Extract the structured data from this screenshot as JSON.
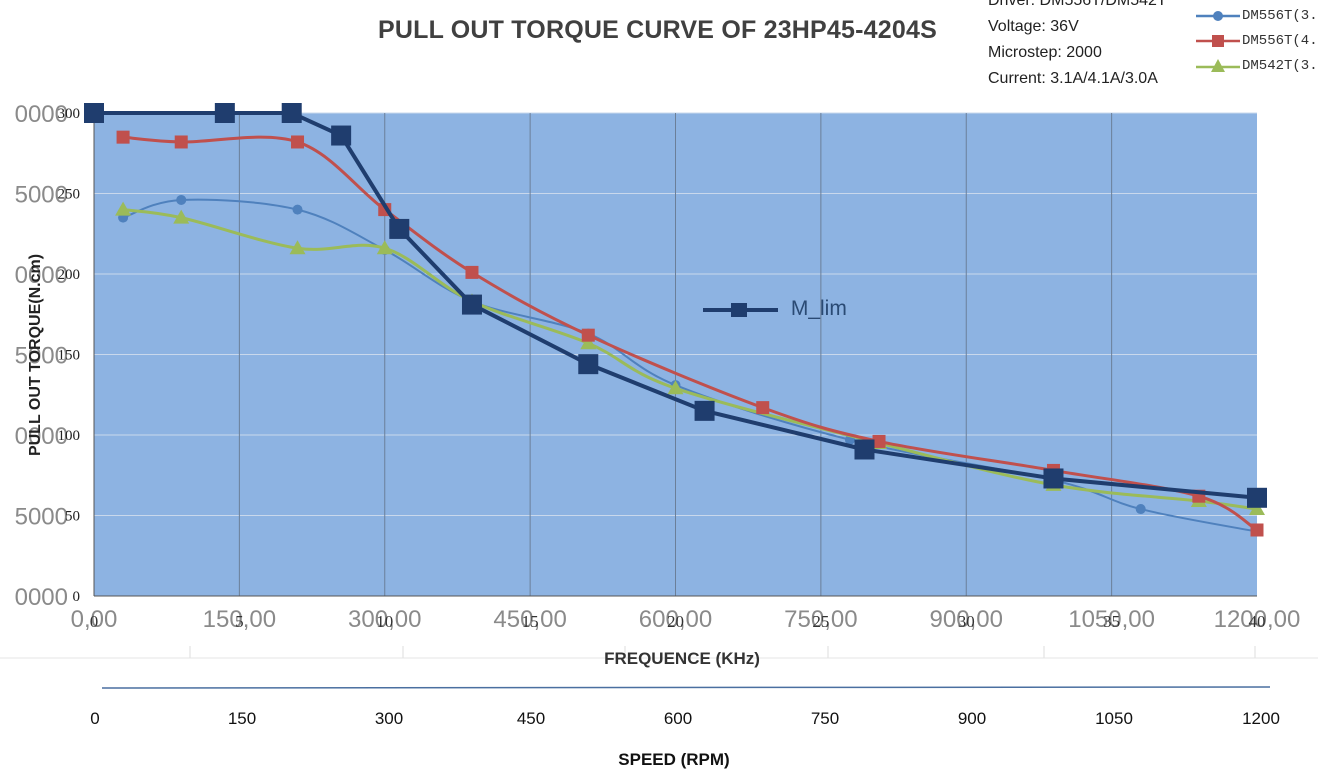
{
  "chart_data": {
    "type": "line",
    "title": "PULL OUT TORQUE CURVE OF 23HP45-4204S",
    "info_lines": [
      "Driver: DM556T/DM542T",
      "Voltage: 36V",
      "Microstep: 2000",
      "Current: 3.1A/4.1A/3.0A"
    ],
    "xlabel": "FREQUENCE (KHz)",
    "ylabel": "PULL OUT TORQUE(N.cm)",
    "secondary_xlabel": "SPEED (RPM)",
    "xlim": [
      0,
      40
    ],
    "ylim": [
      0,
      300
    ],
    "x_ticks": [
      "0",
      "5",
      "10",
      "15",
      "20",
      "25",
      "30",
      "35",
      "40"
    ],
    "y_ticks": [
      "0",
      "50",
      "100",
      "150",
      "200",
      "250",
      "300"
    ],
    "ghost_x_ticks": [
      "0,00",
      "150,00",
      "300,00",
      "450,00",
      "600,00",
      "750,00",
      "900,00",
      "1050,00",
      "1200,00"
    ],
    "ghost_y_ticks": [
      "0000",
      "5000",
      "0000",
      "5000",
      "0000",
      "5000",
      "0000"
    ],
    "speed_ticks": [
      "0",
      "150",
      "300",
      "450",
      "600",
      "750",
      "900",
      "1050",
      "1200"
    ],
    "grid": true,
    "legend_position": "top-right",
    "plot_background": "#8db3e2",
    "series": [
      {
        "name": "DM556T(3.",
        "color": "#4f81bd",
        "marker": "circle",
        "x": [
          1,
          3,
          7,
          10,
          13,
          17,
          20,
          26,
          33,
          36,
          40
        ],
        "y": [
          235,
          246,
          240,
          215,
          183,
          163,
          131,
          97,
          72,
          54,
          40
        ]
      },
      {
        "name": "DM556T(4.",
        "color": "#c0504d",
        "marker": "square",
        "x": [
          1,
          3,
          7,
          10,
          13,
          17,
          23,
          27,
          33,
          38,
          40
        ],
        "y": [
          285,
          282,
          282,
          240,
          201,
          162,
          117,
          96,
          78,
          62,
          41
        ]
      },
      {
        "name": "DM542T(3.",
        "color": "#9bbb59",
        "marker": "triangle",
        "x": [
          1,
          3,
          7,
          10,
          13,
          17,
          20,
          27,
          33,
          38,
          40
        ],
        "y": [
          240,
          235,
          216,
          216,
          183,
          157,
          129,
          95,
          69,
          59,
          54
        ]
      },
      {
        "name": "M_lim",
        "color": "#1f3d6e",
        "marker": "square",
        "x": [
          0,
          4.5,
          6.8,
          8.5,
          10.5,
          13,
          17,
          21,
          26.5,
          33,
          40
        ],
        "y": [
          300,
          300,
          300,
          286,
          228,
          181,
          144,
          115,
          91,
          73,
          61
        ]
      }
    ]
  }
}
